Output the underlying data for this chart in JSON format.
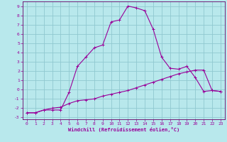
{
  "xlabel": "Windchill (Refroidissement éolien,°C)",
  "background_color": "#b8e8ec",
  "grid_color": "#90c8d0",
  "line_color": "#990099",
  "spine_color": "#660066",
  "x_values": [
    0,
    1,
    2,
    3,
    4,
    5,
    6,
    7,
    8,
    9,
    10,
    11,
    12,
    13,
    14,
    15,
    16,
    17,
    18,
    19,
    20,
    21,
    22,
    23
  ],
  "curve1_y": [
    -2.5,
    -2.5,
    -2.2,
    -2.2,
    -2.2,
    -0.3,
    2.5,
    3.5,
    4.5,
    4.8,
    7.3,
    7.5,
    9.0,
    8.8,
    8.5,
    6.5,
    3.5,
    2.3,
    2.2,
    2.5,
    1.3,
    -0.2,
    -0.1,
    -0.2
  ],
  "curve2_y": [
    -2.5,
    -2.5,
    -2.2,
    -2.0,
    -1.9,
    -1.5,
    -1.2,
    -1.1,
    -1.0,
    -0.7,
    -0.5,
    -0.3,
    -0.1,
    0.2,
    0.5,
    0.8,
    1.1,
    1.4,
    1.7,
    1.9,
    2.1,
    2.1,
    -0.1,
    -0.2
  ],
  "ylim": [
    -3.2,
    9.5
  ],
  "xlim": [
    -0.5,
    23.5
  ],
  "yticks": [
    -3,
    -2,
    -1,
    0,
    1,
    2,
    3,
    4,
    5,
    6,
    7,
    8,
    9
  ],
  "xticks": [
    0,
    1,
    2,
    3,
    4,
    5,
    6,
    7,
    8,
    9,
    10,
    11,
    12,
    13,
    14,
    15,
    16,
    17,
    18,
    19,
    20,
    21,
    22,
    23
  ]
}
